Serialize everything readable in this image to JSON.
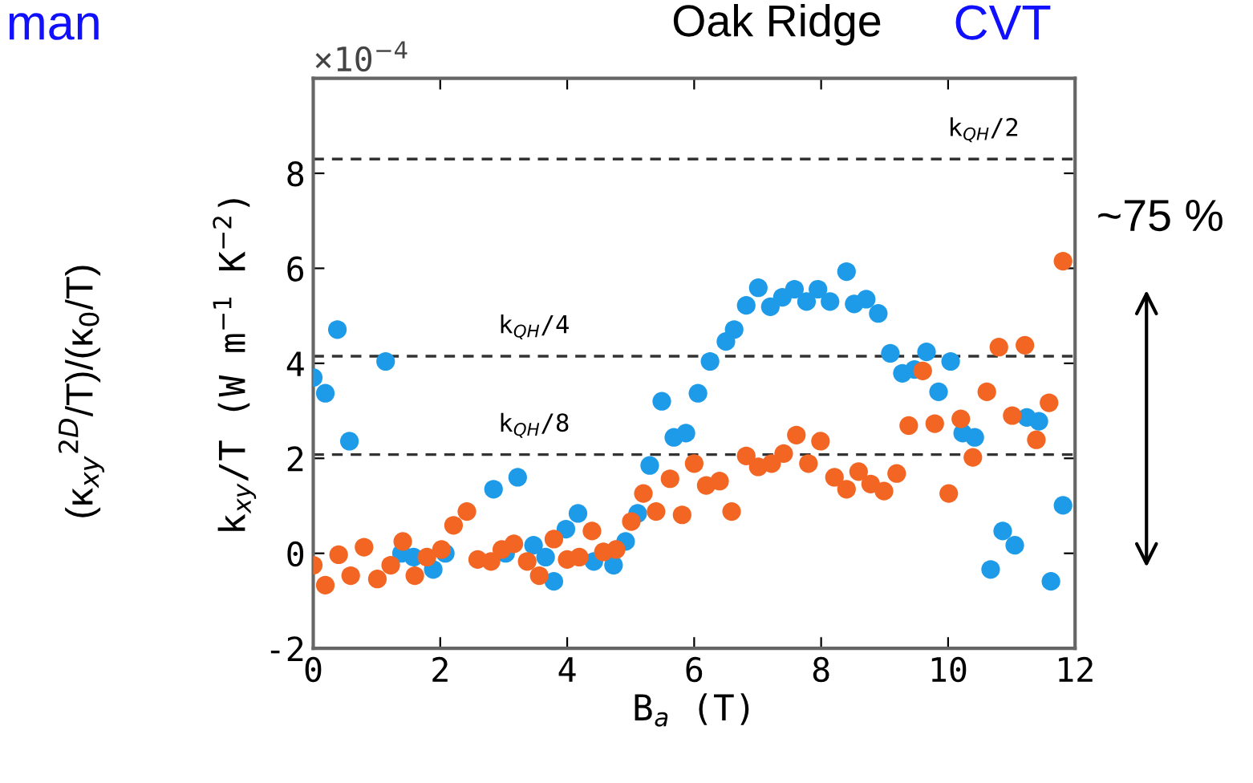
{
  "chart_data": {
    "type": "scatter",
    "xlabel": "B$_{a}$ (T)",
    "ylabel": "k$_{xy}$/T (W m$^{−1}$ K$^{−2}$)",
    "xlim": [
      0,
      12
    ],
    "xticks": [
      0,
      2,
      4,
      6,
      8,
      10,
      12
    ],
    "ylim": [
      -2,
      10
    ],
    "yticks": [
      -2,
      0,
      2,
      4,
      6,
      8
    ],
    "grid": false,
    "marker": "circle",
    "series": [
      {
        "color": "#1e9be8",
        "x": [
          0,
          0.19,
          0.38,
          0.57,
          1.14,
          1.39,
          1.58,
          1.89,
          2.08,
          2.84,
          3.22,
          3.03,
          3.47,
          3.66,
          3.79,
          3.98,
          4.17,
          4.42,
          4.73,
          4.92,
          5.11,
          5.3,
          5.49,
          5.68,
          5.87,
          6.06,
          6.25,
          6.5,
          6.63,
          6.82,
          7.01,
          7.2,
          7.39,
          7.58,
          7.77,
          7.95,
          8.14,
          8.4,
          8.52,
          8.71,
          8.9,
          9.09,
          9.28,
          9.47,
          9.66,
          9.85,
          10.04,
          10.23,
          10.42,
          10.67,
          10.86,
          11.05,
          11.24,
          11.43,
          11.62,
          11.81
        ],
        "values": [
          3.7,
          3.37,
          4.71,
          2.36,
          4.04,
          0,
          -0.08,
          -0.34,
          0,
          1.35,
          1.6,
          0,
          0.17,
          -0.08,
          -0.59,
          0.51,
          0.84,
          -0.17,
          -0.25,
          0.25,
          0.84,
          1.85,
          3.2,
          2.44,
          2.53,
          3.37,
          4.04,
          4.46,
          4.71,
          5.22,
          5.59,
          5.19,
          5.39,
          5.56,
          5.3,
          5.56,
          5.3,
          5.93,
          5.25,
          5.35,
          5.05,
          4.21,
          3.79,
          3.87,
          4.24,
          3.4,
          4.04,
          2.53,
          2.44,
          -0.34,
          0.47,
          0.17,
          2.86,
          2.78,
          -0.59,
          1.01
        ]
      },
      {
        "color": "#f26522",
        "x": [
          0,
          0.19,
          0.4,
          0.59,
          0.8,
          1.01,
          1.22,
          1.41,
          1.6,
          1.79,
          2.02,
          2.21,
          2.42,
          2.59,
          2.8,
          2.97,
          3.16,
          3.37,
          3.56,
          3.79,
          4.0,
          4.19,
          4.39,
          4.57,
          4.77,
          5.01,
          5.2,
          5.4,
          5.62,
          5.81,
          6.0,
          6.19,
          6.4,
          6.59,
          6.82,
          7.01,
          7.22,
          7.41,
          7.61,
          7.8,
          7.99,
          8.21,
          8.4,
          8.59,
          8.78,
          8.99,
          9.19,
          9.38,
          9.6,
          9.79,
          10.01,
          10.2,
          10.39,
          10.61,
          10.8,
          11.01,
          11.21,
          11.39,
          11.59,
          11.81
        ],
        "values": [
          -0.25,
          -0.67,
          -0.03,
          -0.47,
          0.13,
          -0.54,
          -0.25,
          0.25,
          -0.47,
          -0.08,
          0.08,
          0.59,
          0.88,
          -0.13,
          -0.17,
          0.08,
          0.2,
          -0.17,
          -0.47,
          0.3,
          -0.13,
          -0.08,
          0.47,
          0.03,
          0.08,
          0.67,
          1.26,
          0.88,
          1.57,
          0.81,
          1.89,
          1.43,
          1.52,
          0.88,
          2.05,
          1.82,
          1.89,
          2.1,
          2.49,
          1.89,
          2.36,
          1.6,
          1.35,
          1.72,
          1.46,
          1.31,
          1.68,
          2.69,
          3.84,
          2.73,
          1.26,
          2.83,
          2.02,
          3.4,
          4.34,
          2.9,
          4.38,
          2.39,
          3.17,
          6.15
        ]
      }
    ],
    "ref_lines": [
      {
        "axis": "y",
        "value": 8.3,
        "label": "k$_{QH}$/2",
        "color": "#333333",
        "line_style": "dashed"
      },
      {
        "axis": "y",
        "value": 4.15,
        "label": "k$_{QH}$/4",
        "color": "#333333",
        "line_style": "dashed"
      },
      {
        "axis": "y",
        "value": 2.08,
        "label": "k$_{QH}$/8",
        "color": "#333333",
        "line_style": "dashed"
      }
    ],
    "annotations": [
      "×10$^{−4}$",
      "Oak Ridge",
      "CVT",
      "man",
      "~75 %",
      "(κ$_{xy}$$^{2D}$/T)/(κ$_{0}$/T)"
    ]
  }
}
